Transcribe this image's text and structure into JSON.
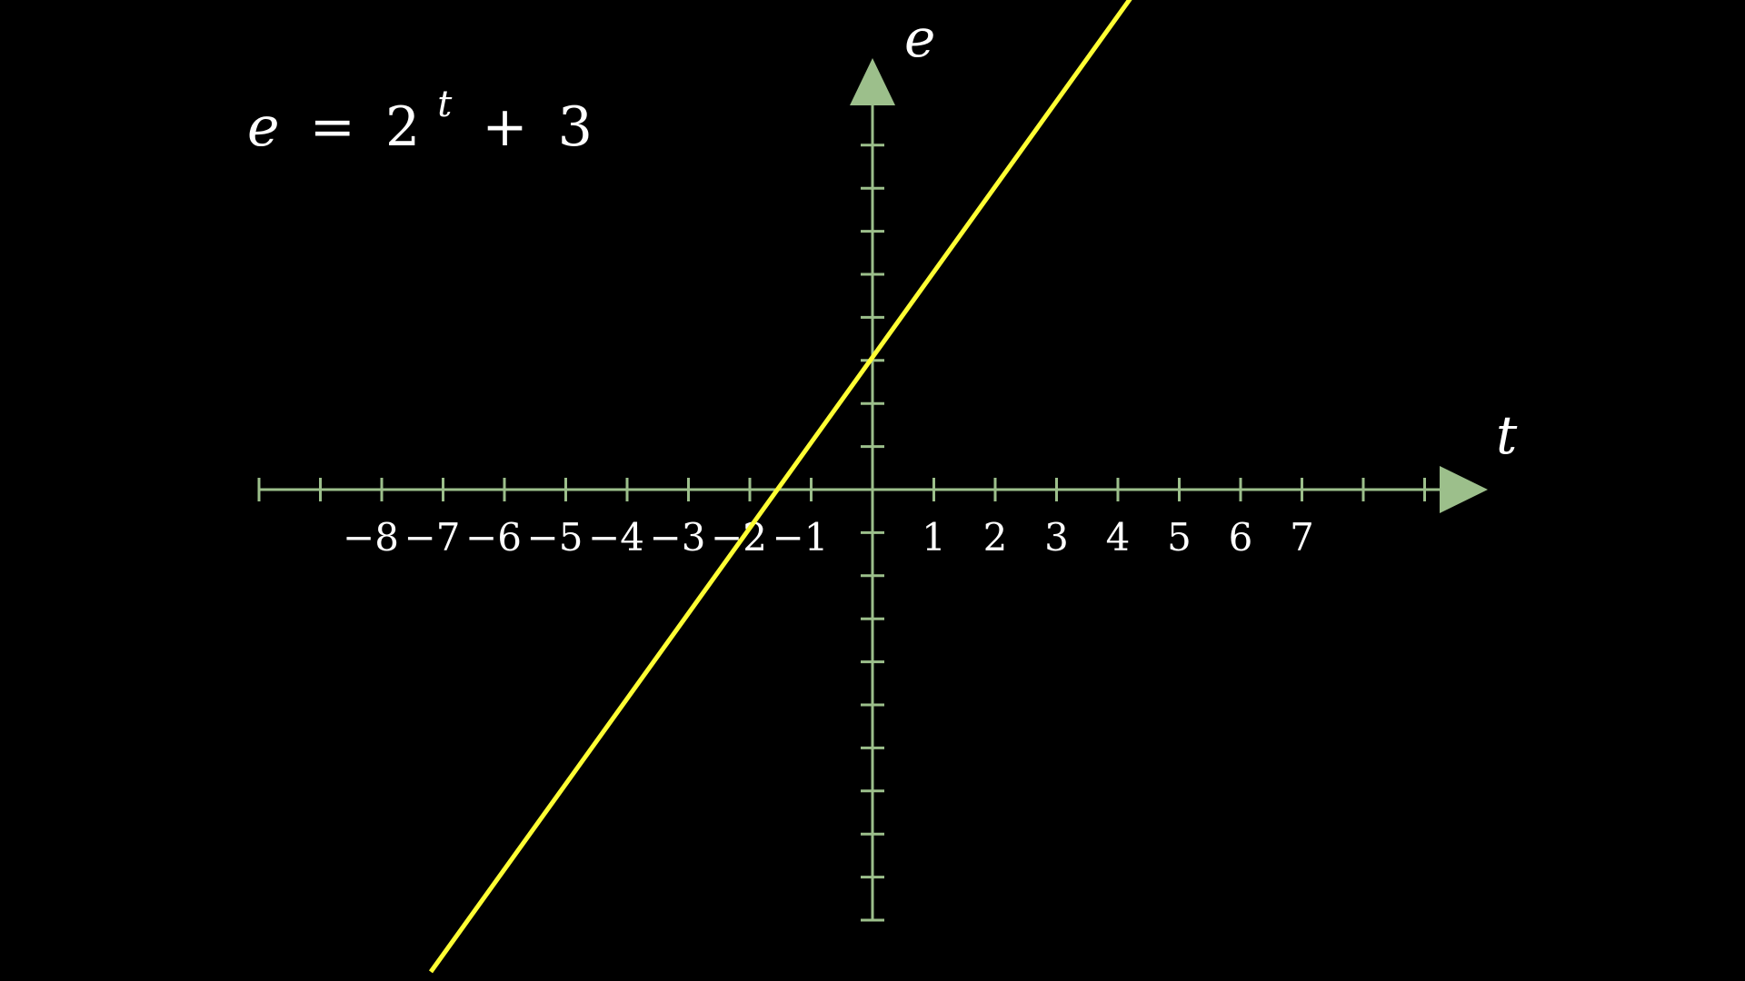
{
  "chart_data": {
    "type": "line",
    "title": "",
    "equation": {
      "lhs": "e",
      "equals": "=",
      "base": "2",
      "exponent": "t",
      "plus": "+",
      "constant": "3"
    },
    "xlabel": "t",
    "ylabel": "e",
    "x_tick_labels": [
      "−8",
      "−7",
      "−6",
      "−5",
      "−4",
      "−3",
      "−2",
      "−1",
      "1",
      "2",
      "3",
      "4",
      "5",
      "6",
      "7"
    ],
    "x_tick_values": [
      -8,
      -7,
      -6,
      -5,
      -4,
      -3,
      -2,
      -1,
      1,
      2,
      3,
      4,
      5,
      6,
      7
    ],
    "xlim": [
      -10,
      9
    ],
    "ylim": [
      -10,
      8
    ],
    "series": [
      {
        "x": [
          -7.2,
          4.2
        ],
        "y": [
          -11.2,
          11.4
        ]
      }
    ],
    "axis_color": "#9cbf8b",
    "line_color": "#ffff33",
    "background": "#000000",
    "grid": false
  }
}
